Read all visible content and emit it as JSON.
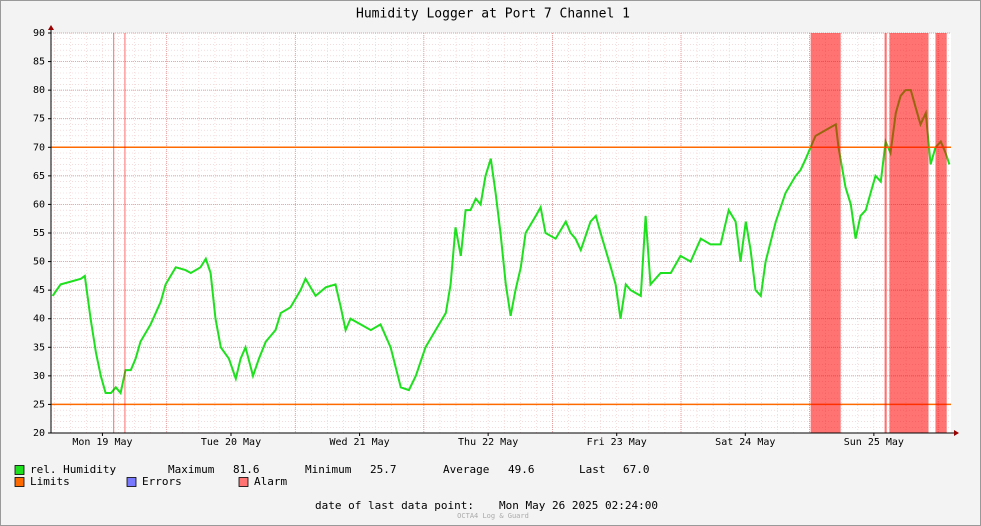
{
  "chart_data": {
    "type": "line",
    "title": "Humidity Logger at Port 7 Channel 1",
    "xlim": [
      2.4,
      170.4
    ],
    "ylim": [
      20,
      90
    ],
    "yticks": [
      20,
      25,
      30,
      35,
      40,
      45,
      50,
      55,
      60,
      65,
      70,
      75,
      80,
      85,
      90
    ],
    "xticks": [
      {
        "value": 12,
        "label": "Mon 19 May"
      },
      {
        "value": 36,
        "label": "Tue 20 May"
      },
      {
        "value": 60,
        "label": "Wed 21 May"
      },
      {
        "value": 84,
        "label": "Thu 22 May"
      },
      {
        "value": 108,
        "label": "Fri 23 May"
      },
      {
        "value": 132,
        "label": "Sat 24 May"
      },
      {
        "value": 156,
        "label": "Sun 25 May"
      }
    ],
    "xgrid": [
      24,
      48,
      72,
      96,
      120,
      144,
      168
    ],
    "series": [
      {
        "name": "rel. Humidity",
        "color": "#1ee01e",
        "x": [
          2.7,
          4.2,
          6.1,
          8.0,
          8.7,
          9.8,
          10.8,
          11.7,
          12.6,
          13.6,
          14.5,
          15.4,
          16.3,
          17.3,
          18.2,
          19.1,
          21.0,
          22.9,
          23.8,
          25.7,
          27.5,
          28.5,
          30.3,
          31.3,
          32.2,
          33.1,
          34.1,
          35.6,
          36.9,
          37.8,
          38.7,
          40.1,
          41.2,
          42.5,
          44.3,
          45.3,
          47.1,
          49.0,
          49.9,
          51.8,
          53.7,
          55.5,
          56.5,
          57.4,
          58.3,
          60.2,
          62.1,
          63.9,
          65.8,
          67.7,
          69.2,
          70.5,
          72.3,
          74.2,
          76.1,
          77.0,
          77.9,
          78.9,
          79.8,
          80.7,
          81.7,
          82.6,
          83.5,
          84.5,
          85.4,
          86.3,
          87.3,
          88.2,
          89.1,
          90.1,
          91.0,
          92.9,
          93.8,
          94.7,
          96.6,
          98.5,
          99.4,
          100.3,
          101.3,
          103.1,
          104.1,
          105.0,
          106.9,
          107.8,
          108.7,
          109.7,
          110.6,
          112.5,
          113.4,
          114.3,
          116.2,
          118.1,
          119.9,
          121.8,
          123.7,
          125.5,
          127.4,
          128.9,
          130.2,
          131.1,
          132.1,
          133.0,
          133.9,
          134.9,
          135.8,
          137.7,
          139.5,
          141.4,
          142.3,
          143.3,
          144.2,
          145.1,
          147.0,
          148.9,
          149.4,
          150.7,
          151.7,
          152.6,
          153.5,
          154.5,
          155.4,
          156.3,
          157.3,
          158.2,
          159.1,
          160.1,
          161.0,
          161.9,
          162.9,
          163.8,
          164.7,
          165.7,
          166.6,
          167.5,
          168.5,
          169.4,
          170.1
        ],
        "values": [
          44,
          46,
          46.5,
          47,
          47.5,
          40,
          34,
          30,
          27,
          27,
          28,
          27,
          31,
          31,
          33,
          36,
          39,
          43,
          46,
          49,
          48.5,
          48,
          49,
          50.5,
          48,
          40,
          35,
          33,
          29.5,
          33,
          35,
          30,
          33,
          36,
          38,
          41,
          42,
          45,
          47,
          44,
          45.5,
          46,
          42,
          38,
          40,
          39,
          38,
          39,
          35,
          28,
          27.5,
          30,
          35,
          38,
          41,
          46,
          56,
          51,
          59,
          59,
          61,
          60,
          65,
          68,
          62,
          55,
          46,
          40.5,
          45,
          49,
          55,
          58,
          59.5,
          55,
          54,
          57,
          55,
          54,
          52,
          57,
          58,
          55,
          49,
          46,
          40,
          46,
          45,
          44,
          58,
          46,
          48,
          48,
          51,
          50,
          54,
          53,
          53,
          59,
          57,
          50,
          57,
          52,
          45,
          44,
          50,
          57,
          62,
          65,
          66,
          68,
          70,
          72,
          73,
          74,
          70,
          63,
          60,
          54,
          58,
          59,
          62,
          65,
          64,
          71,
          69,
          76,
          79,
          80,
          80,
          77,
          74,
          76,
          67,
          70,
          71,
          69,
          67
        ]
      }
    ],
    "limits": {
      "name": "Limits",
      "color": "#ff6a00",
      "values": [
        25,
        70
      ]
    },
    "errors": {
      "name": "Errors",
      "color": "#7878ff"
    },
    "alarm": {
      "name": "Alarm",
      "color": "#ff0000",
      "periods": [
        [
          14.0,
          14.2
        ],
        [
          16.1,
          16.3
        ],
        [
          144.2,
          149.8
        ],
        [
          158.0,
          158.4
        ],
        [
          158.9,
          166.2
        ],
        [
          167.5,
          169.6
        ]
      ]
    },
    "stats": [
      {
        "label": "Maximum",
        "value": "81.6"
      },
      {
        "label": "Minimum",
        "value": "25.7"
      },
      {
        "label": "Average",
        "value": "49.6"
      },
      {
        "label": "Last",
        "value": "67.0"
      }
    ],
    "footer": {
      "label": "date of last data point:",
      "value": "Mon May 26 2025 02:24:00"
    },
    "watermark": "OCTA4 Log & Guard"
  }
}
